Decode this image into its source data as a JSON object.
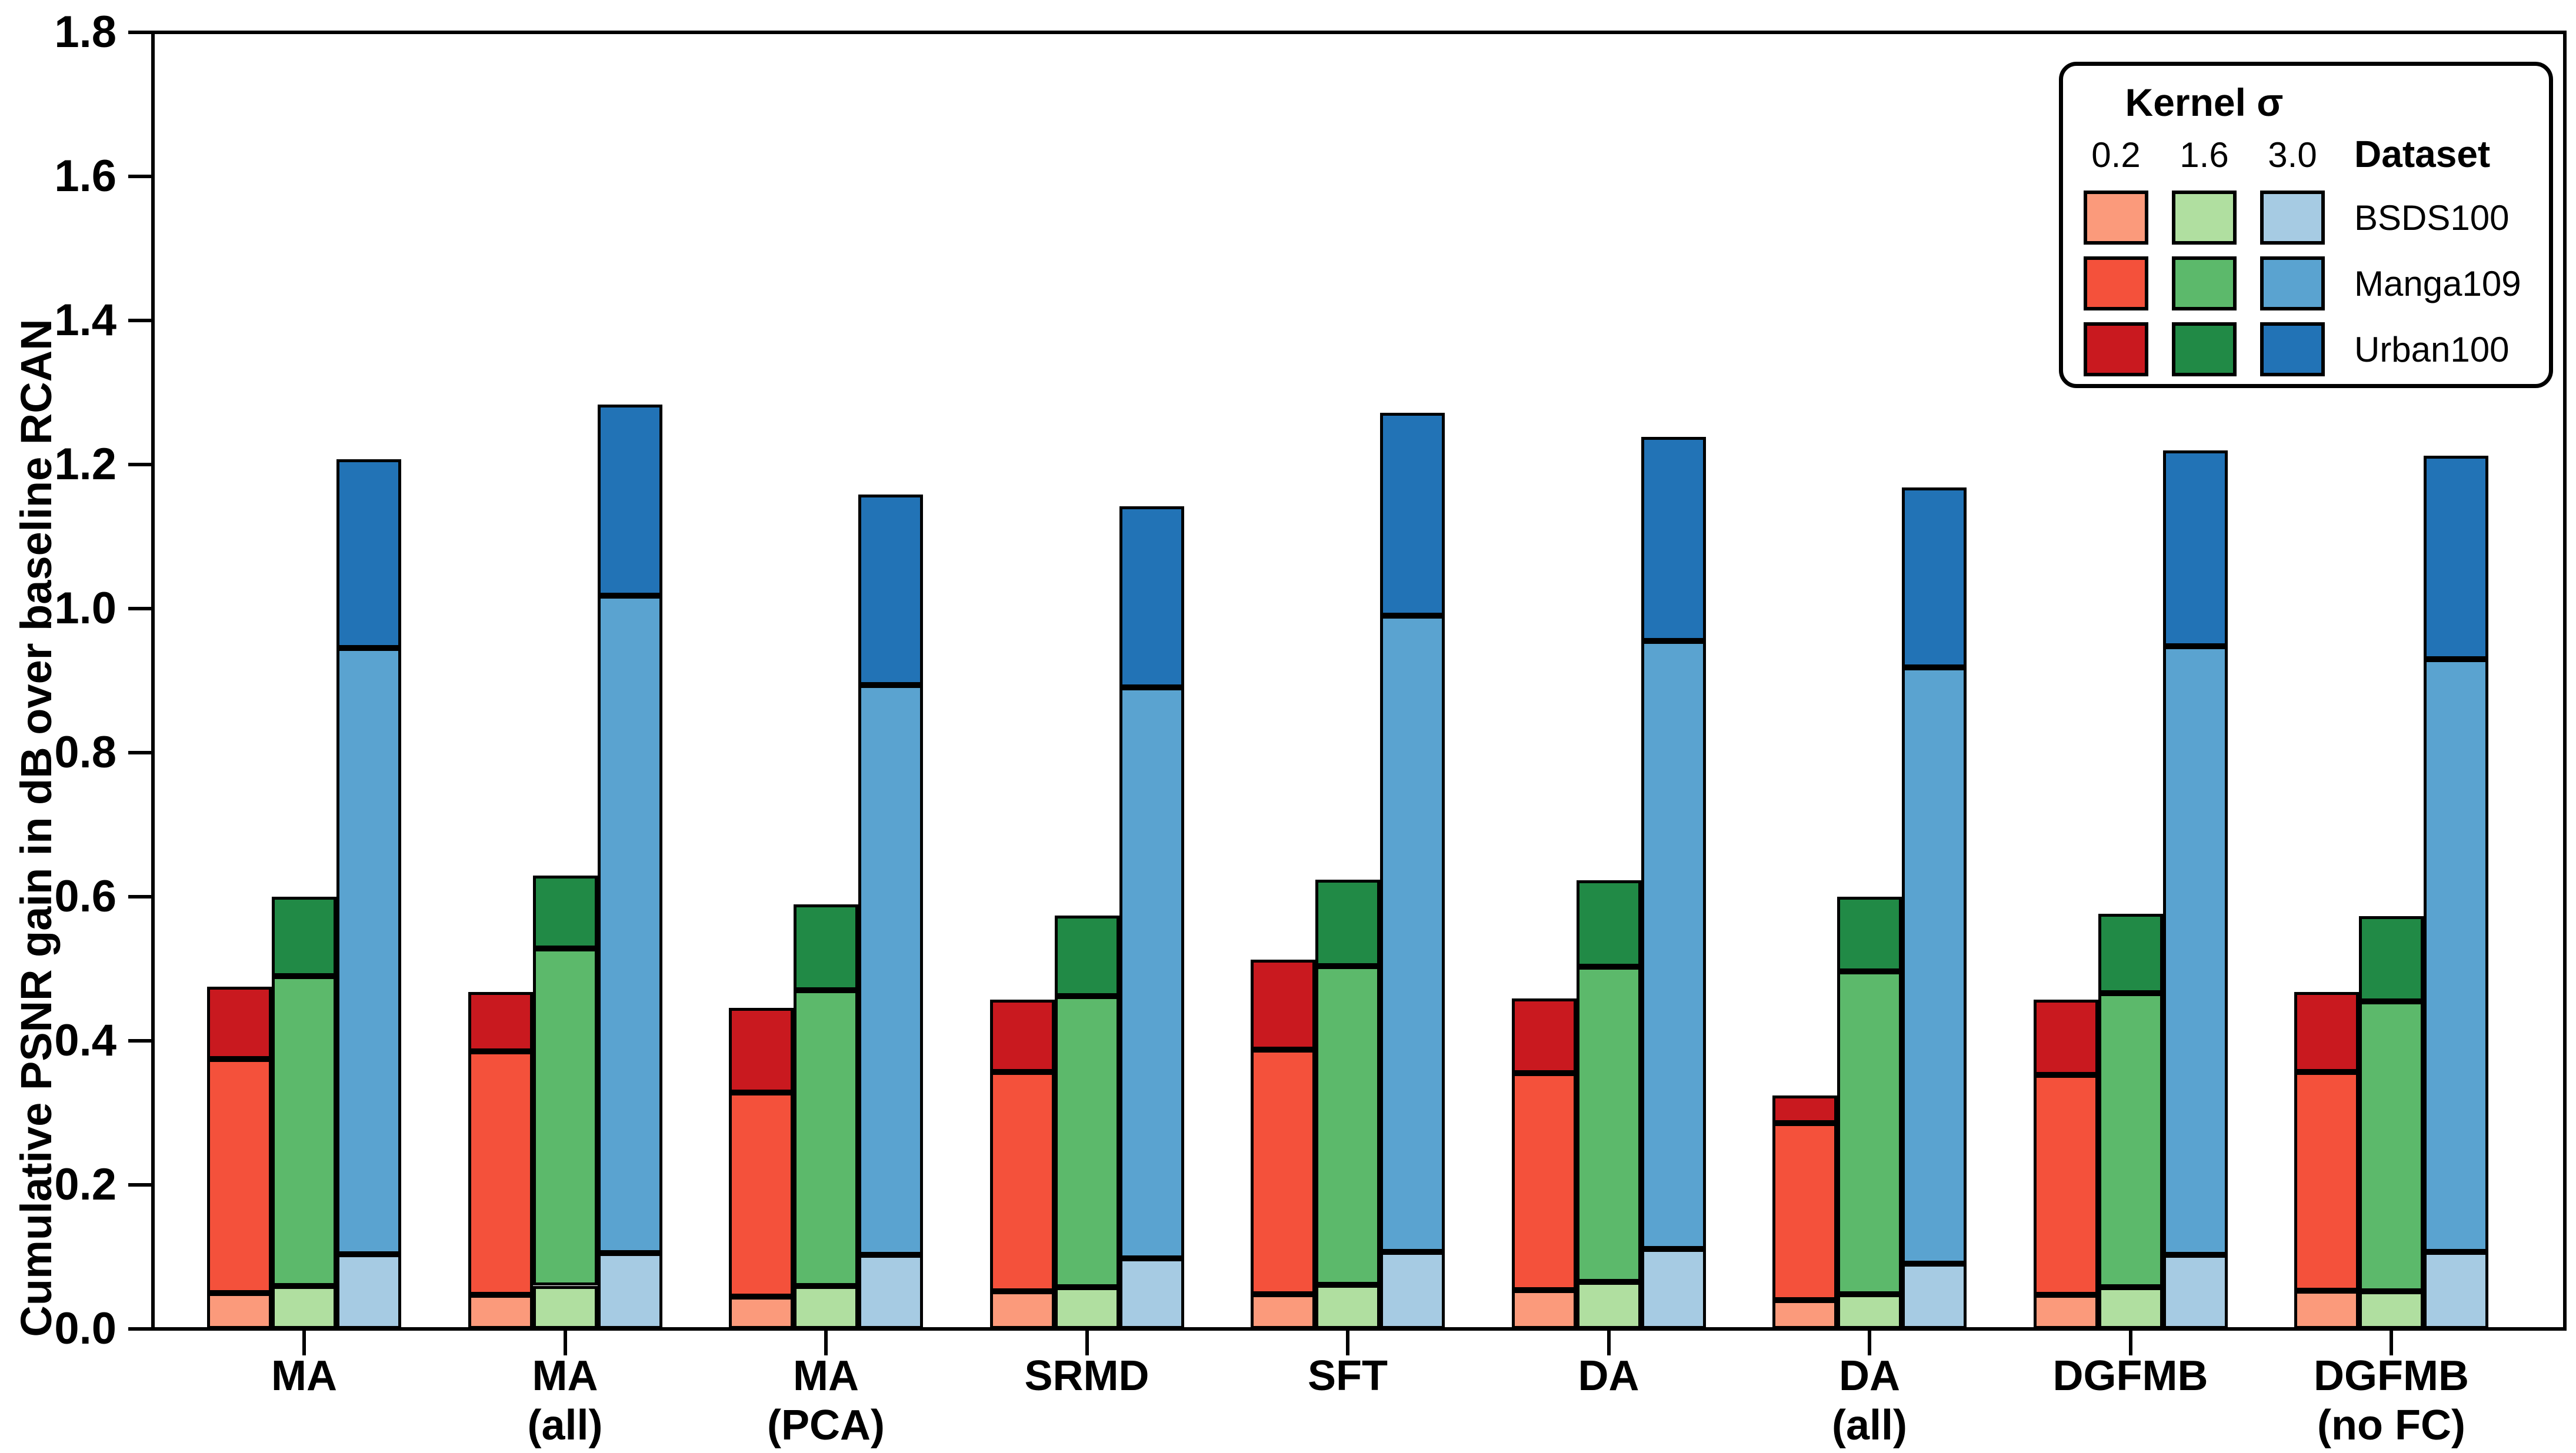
{
  "legend": {
    "kernel_title": "Kernel σ",
    "dataset_title": "Dataset",
    "sigma_values": [
      "0.2",
      "1.6",
      "3.0"
    ],
    "datasets": [
      "BSDS100",
      "Manga109",
      "Urban100"
    ],
    "colors": [
      [
        "#FB9A7B",
        "#B0DFA0",
        "#A6CBE3"
      ],
      [
        "#F4513B",
        "#5CB96B",
        "#5AA3D0"
      ],
      [
        "#C9191F",
        "#218A46",
        "#2273B6"
      ]
    ]
  },
  "chart_data": {
    "type": "bar",
    "stacked": true,
    "title": "",
    "xlabel": "",
    "ylabel": "Cumulative PSNR gain in dB over baseline RCAN",
    "ylim": [
      0,
      1.8
    ],
    "yticks": [
      0.0,
      0.2,
      0.4,
      0.6,
      0.8,
      1.0,
      1.2,
      1.4,
      1.6,
      1.8
    ],
    "grid": false,
    "legend_position": "upper right",
    "categories": [
      [
        "MA"
      ],
      [
        "MA",
        "(all)"
      ],
      [
        "MA",
        "(PCA)"
      ],
      [
        "SRMD"
      ],
      [
        "SFT"
      ],
      [
        "DA"
      ],
      [
        "DA",
        "(all)"
      ],
      [
        "DGFMB"
      ],
      [
        "DGFMB",
        "(no FC)"
      ]
    ],
    "datasets": [
      "BSDS100",
      "Manga109",
      "Urban100"
    ],
    "series": [
      {
        "sigma": "0.2",
        "dataset_colors": [
          "#FB9A7B",
          "#F4513B",
          "#C9191F"
        ],
        "segments": [
          [
            0.05,
            0.325,
            0.1
          ],
          [
            0.047,
            0.338,
            0.083
          ],
          [
            0.045,
            0.283,
            0.118
          ],
          [
            0.052,
            0.305,
            0.1
          ],
          [
            0.048,
            0.34,
            0.125
          ],
          [
            0.054,
            0.301,
            0.104
          ],
          [
            0.04,
            0.246,
            0.038
          ],
          [
            0.047,
            0.306,
            0.104
          ],
          [
            0.053,
            0.304,
            0.111
          ]
        ],
        "totals": [
          0.475,
          0.468,
          0.446,
          0.457,
          0.513,
          0.459,
          0.324,
          0.457,
          0.468
        ]
      },
      {
        "sigma": "1.6",
        "dataset_colors": [
          "#B0DFA0",
          "#5CB96B",
          "#218A46"
        ],
        "segments": [
          [
            0.06,
            0.43,
            0.11
          ],
          [
            0.06,
            0.468,
            0.101
          ],
          [
            0.06,
            0.41,
            0.119
          ],
          [
            0.058,
            0.404,
            0.112
          ],
          [
            0.061,
            0.443,
            0.12
          ],
          [
            0.065,
            0.438,
            0.12
          ],
          [
            0.048,
            0.448,
            0.104
          ],
          [
            0.058,
            0.408,
            0.11
          ],
          [
            0.052,
            0.403,
            0.118
          ]
        ],
        "totals": [
          0.6,
          0.629,
          0.589,
          0.574,
          0.624,
          0.623,
          0.6,
          0.576,
          0.573
        ]
      },
      {
        "sigma": "3.0",
        "dataset_colors": [
          "#A6CBE3",
          "#5AA3D0",
          "#2273B6"
        ],
        "segments": [
          [
            0.104,
            0.841,
            0.262
          ],
          [
            0.105,
            0.913,
            0.265
          ],
          [
            0.103,
            0.791,
            0.264
          ],
          [
            0.098,
            0.793,
            0.251
          ],
          [
            0.107,
            0.883,
            0.282
          ],
          [
            0.111,
            0.844,
            0.283
          ],
          [
            0.091,
            0.827,
            0.25
          ],
          [
            0.103,
            0.845,
            0.272
          ],
          [
            0.107,
            0.823,
            0.282
          ]
        ],
        "totals": [
          1.207,
          1.283,
          1.158,
          1.142,
          1.272,
          1.238,
          1.168,
          1.22,
          1.212
        ]
      }
    ]
  }
}
